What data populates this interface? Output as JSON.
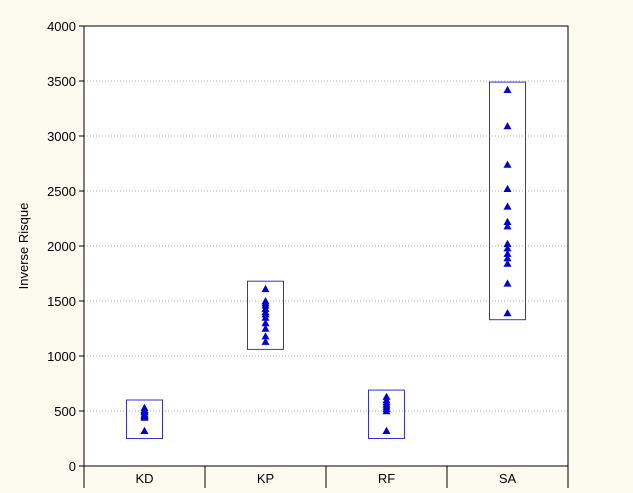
{
  "colors": {
    "page_background": "#fdfaf0",
    "plot_background": "#ffffff",
    "marker": "#0000cc",
    "box": "#3333cc",
    "grid": "#b0b0b0",
    "axis": "#000000"
  },
  "chart_data": {
    "type": "scatter",
    "title": "",
    "xlabel": "",
    "ylabel": "Inverse Risque",
    "categories": [
      "KD",
      "KP",
      "RF",
      "SA"
    ],
    "ylim": [
      0,
      4000
    ],
    "y_ticks": [
      0,
      500,
      1000,
      1500,
      2000,
      2500,
      3000,
      3500,
      4000
    ],
    "grid": "horizontal dotted",
    "marker": "triangle",
    "groups": [
      {
        "category": "KD",
        "values": [
          530,
          510,
          500,
          490,
          470,
          460,
          450,
          440,
          320
        ],
        "range_box": [
          250,
          600
        ]
      },
      {
        "category": "KP",
        "values": [
          1610,
          1500,
          1480,
          1460,
          1430,
          1400,
          1380,
          1350,
          1300,
          1250,
          1180,
          1130
        ],
        "range_box": [
          1060,
          1680
        ]
      },
      {
        "category": "RF",
        "values": [
          630,
          600,
          580,
          560,
          540,
          520,
          500,
          320
        ],
        "range_box": [
          250,
          690
        ]
      },
      {
        "category": "SA",
        "values": [
          3420,
          3090,
          2740,
          2520,
          2360,
          2220,
          2180,
          2020,
          1980,
          1930,
          1890,
          1840,
          1660,
          1390
        ],
        "range_box": [
          1330,
          3490
        ]
      }
    ]
  }
}
